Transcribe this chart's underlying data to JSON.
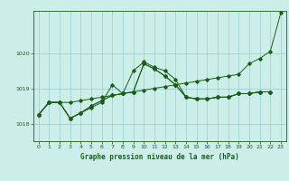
{
  "title": "Graphe pression niveau de la mer (hPa)",
  "bg_color": "#cceee8",
  "grid_color": "#99cccc",
  "line_color": "#1a5c1a",
  "xlim": [
    -0.5,
    23.5
  ],
  "ylim": [
    1017.5,
    1021.2
  ],
  "yticks": [
    1018,
    1019,
    1020
  ],
  "xticks": [
    0,
    1,
    2,
    3,
    4,
    5,
    6,
    7,
    8,
    9,
    10,
    11,
    12,
    13,
    14,
    15,
    16,
    17,
    18,
    19,
    20,
    21,
    22,
    23
  ],
  "series": [
    {
      "x": [
        0,
        1,
        2,
        3,
        4,
        5,
        6,
        7,
        8,
        9,
        10,
        11,
        12,
        13,
        14,
        15,
        16,
        17,
        18,
        19,
        20,
        21,
        22,
        23
      ],
      "y": [
        1018.25,
        1018.6,
        1018.6,
        1018.6,
        1018.65,
        1018.7,
        1018.75,
        1018.8,
        1018.85,
        1018.9,
        1018.95,
        1019.0,
        1019.05,
        1019.1,
        1019.15,
        1019.2,
        1019.25,
        1019.3,
        1019.35,
        1019.4,
        1019.7,
        1019.85,
        1020.05,
        1021.15
      ]
    },
    {
      "x": [
        0,
        1,
        2,
        3,
        4,
        5,
        6,
        7,
        8,
        9,
        10,
        11,
        12,
        13,
        14,
        15,
        16,
        17,
        18,
        19,
        20,
        21,
        22
      ],
      "y": [
        1018.25,
        1018.6,
        1018.6,
        1018.15,
        1018.3,
        1018.45,
        1018.6,
        1019.1,
        1018.85,
        1019.5,
        1019.75,
        1019.6,
        1019.5,
        1019.25,
        1018.75,
        1018.7,
        1018.7,
        1018.75,
        1018.75,
        1018.85,
        1018.85,
        1018.9,
        1018.9
      ]
    },
    {
      "x": [
        0,
        1,
        2,
        3,
        4,
        5,
        6,
        7,
        8,
        9,
        10,
        11,
        12,
        13,
        14,
        15,
        16,
        17,
        18,
        19,
        20,
        21,
        22
      ],
      "y": [
        1018.25,
        1018.6,
        1018.6,
        1018.15,
        1018.3,
        1018.5,
        1018.65,
        1018.8,
        1018.85,
        1018.9,
        1019.7,
        1019.55,
        1019.35,
        1019.1,
        1018.75,
        1018.7,
        1018.7,
        1018.75,
        1018.75,
        1018.85,
        1018.85,
        1018.9,
        1018.9
      ]
    },
    {
      "x": [
        0,
        1,
        2,
        3,
        4,
        5,
        6,
        7,
        8,
        9,
        10,
        11,
        12,
        13,
        14,
        15,
        16,
        17,
        18,
        19,
        20,
        21,
        22
      ],
      "y": [
        1018.25,
        1018.6,
        1018.6,
        1018.15,
        1018.3,
        1018.5,
        1018.65,
        1018.8,
        1018.85,
        1018.9,
        1019.7,
        1019.55,
        1019.35,
        1019.1,
        1018.75,
        1018.7,
        1018.7,
        1018.75,
        1018.75,
        1018.85,
        1018.85,
        1018.9,
        1018.9
      ]
    }
  ]
}
